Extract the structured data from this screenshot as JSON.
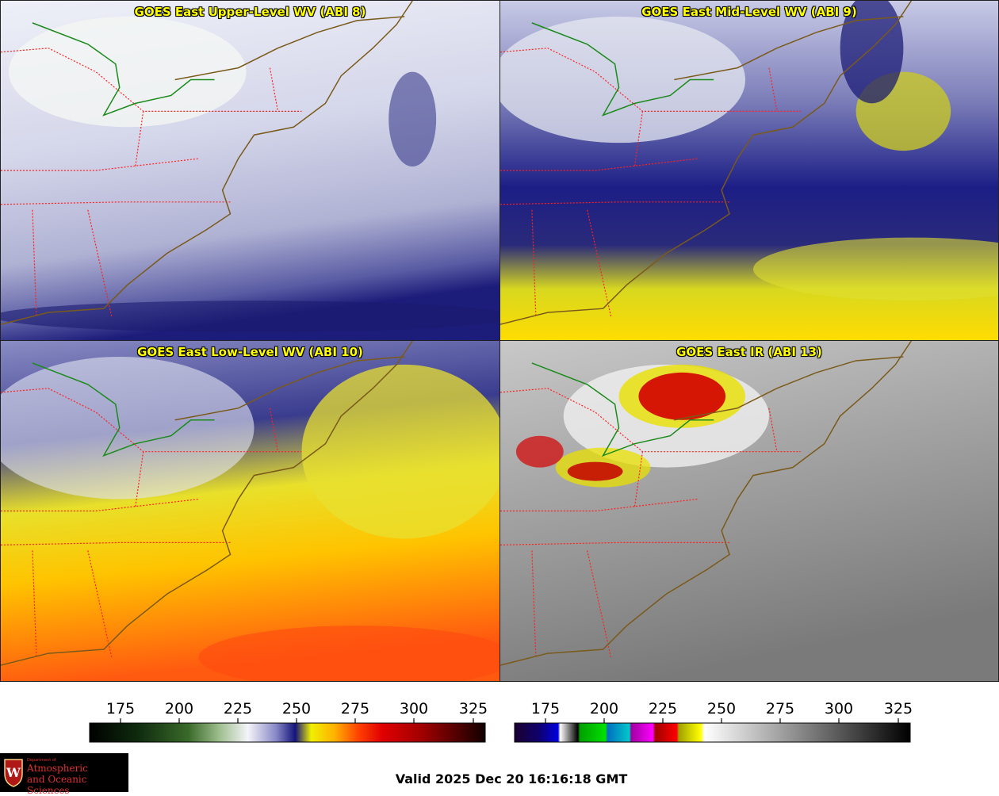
{
  "panels": [
    {
      "title": "GOES East Upper-Level WV (ABI 8)"
    },
    {
      "title": "GOES East Mid-Level WV (ABI 9)"
    },
    {
      "title": "GOES East Low-Level WV (ABI 10)"
    },
    {
      "title": "GOES East IR (ABI 13)"
    }
  ],
  "colorbars": [
    {
      "ticks": [
        "175",
        "200",
        "225",
        "250",
        "275",
        "300",
        "325"
      ],
      "name": "water-vapor"
    },
    {
      "ticks": [
        "175",
        "200",
        "225",
        "250",
        "275",
        "300",
        "325"
      ],
      "name": "infrared"
    }
  ],
  "logo": {
    "line1": "Department of",
    "line2": "Atmospheric",
    "line3": "and Oceanic Sciences"
  },
  "valid_time": "Valid 2025 Dec 20 16:16:18 GMT",
  "colors": {
    "title_text": "#ffff00",
    "state_borders": "#ff2020",
    "coastline": "#7a5a1a",
    "boundary_green": "#1a8a1a"
  }
}
